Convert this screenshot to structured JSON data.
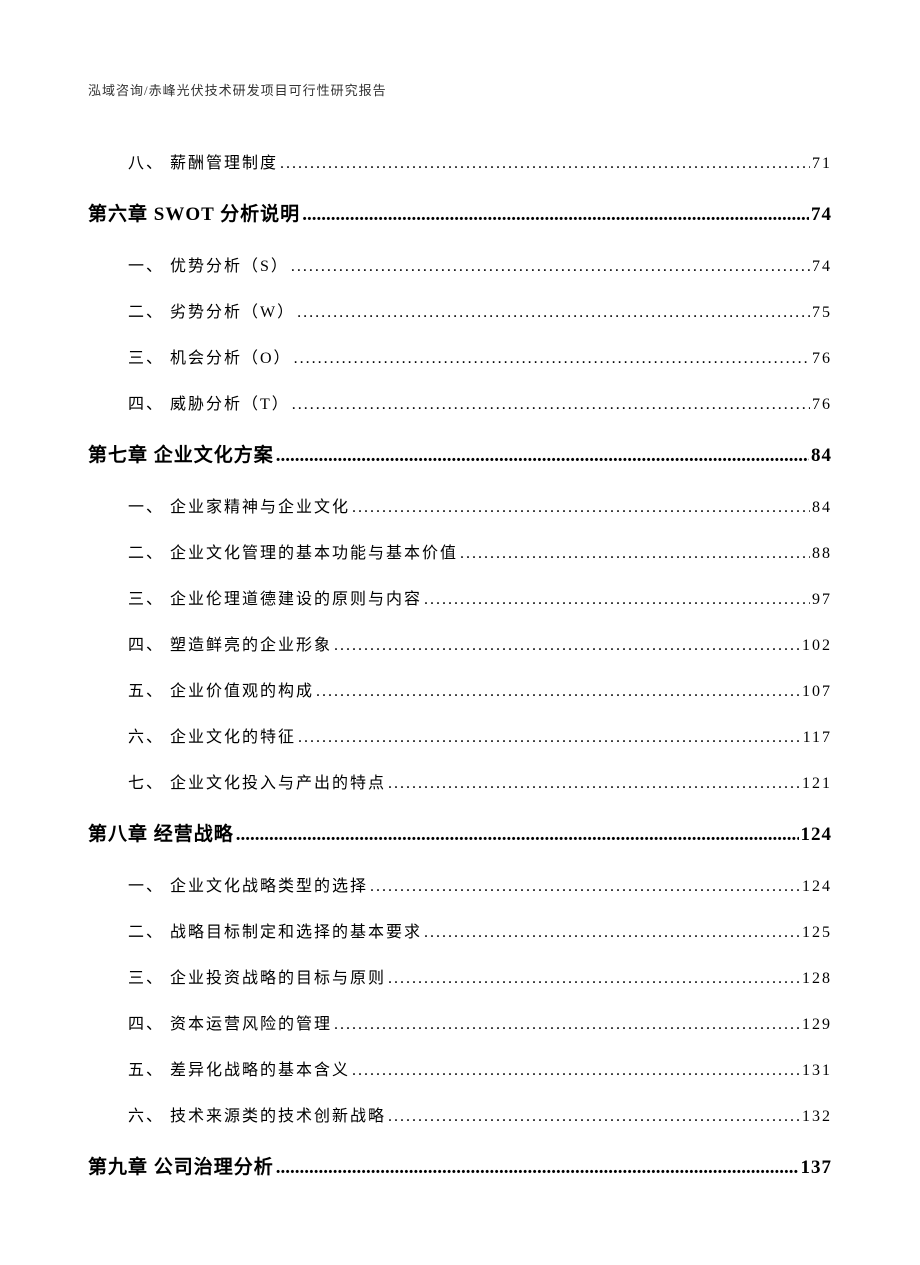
{
  "header": "泓域咨询/赤峰光伏技术研发项目可行性研究报告",
  "dots_sub": ".........................................................................................................................................................................................",
  "dots_chapter": "..............................................................................................................................................",
  "entries": [
    {
      "type": "sub",
      "label": "八、 薪酬管理制度",
      "page": "71"
    },
    {
      "type": "chapter",
      "label": "第六章 SWOT 分析说明",
      "page": "74"
    },
    {
      "type": "sub",
      "label": "一、 优势分析（S）",
      "page": "74"
    },
    {
      "type": "sub",
      "label": "二、 劣势分析（W）",
      "page": "75"
    },
    {
      "type": "sub",
      "label": "三、 机会分析（O）",
      "page": "76"
    },
    {
      "type": "sub",
      "label": "四、 威胁分析（T）",
      "page": "76"
    },
    {
      "type": "chapter",
      "label": "第七章 企业文化方案",
      "page": "84"
    },
    {
      "type": "sub",
      "label": "一、 企业家精神与企业文化",
      "page": "84"
    },
    {
      "type": "sub",
      "label": "二、 企业文化管理的基本功能与基本价值",
      "page": "88"
    },
    {
      "type": "sub",
      "label": "三、 企业伦理道德建设的原则与内容",
      "page": "97"
    },
    {
      "type": "sub",
      "label": "四、 塑造鲜亮的企业形象",
      "page": "102"
    },
    {
      "type": "sub",
      "label": "五、 企业价值观的构成",
      "page": "107"
    },
    {
      "type": "sub",
      "label": "六、 企业文化的特征",
      "page": "117"
    },
    {
      "type": "sub",
      "label": "七、 企业文化投入与产出的特点",
      "page": "121"
    },
    {
      "type": "chapter",
      "label": "第八章 经营战略",
      "page": "124"
    },
    {
      "type": "sub",
      "label": "一、 企业文化战略类型的选择",
      "page": "124"
    },
    {
      "type": "sub",
      "label": "二、 战略目标制定和选择的基本要求",
      "page": "125"
    },
    {
      "type": "sub",
      "label": "三、 企业投资战略的目标与原则",
      "page": "128"
    },
    {
      "type": "sub",
      "label": "四、 资本运营风险的管理",
      "page": "129"
    },
    {
      "type": "sub",
      "label": "五、 差异化战略的基本含义",
      "page": "131"
    },
    {
      "type": "sub",
      "label": "六、 技术来源类的技术创新战略",
      "page": "132"
    },
    {
      "type": "chapter",
      "label": "第九章 公司治理分析",
      "page": "137"
    }
  ]
}
